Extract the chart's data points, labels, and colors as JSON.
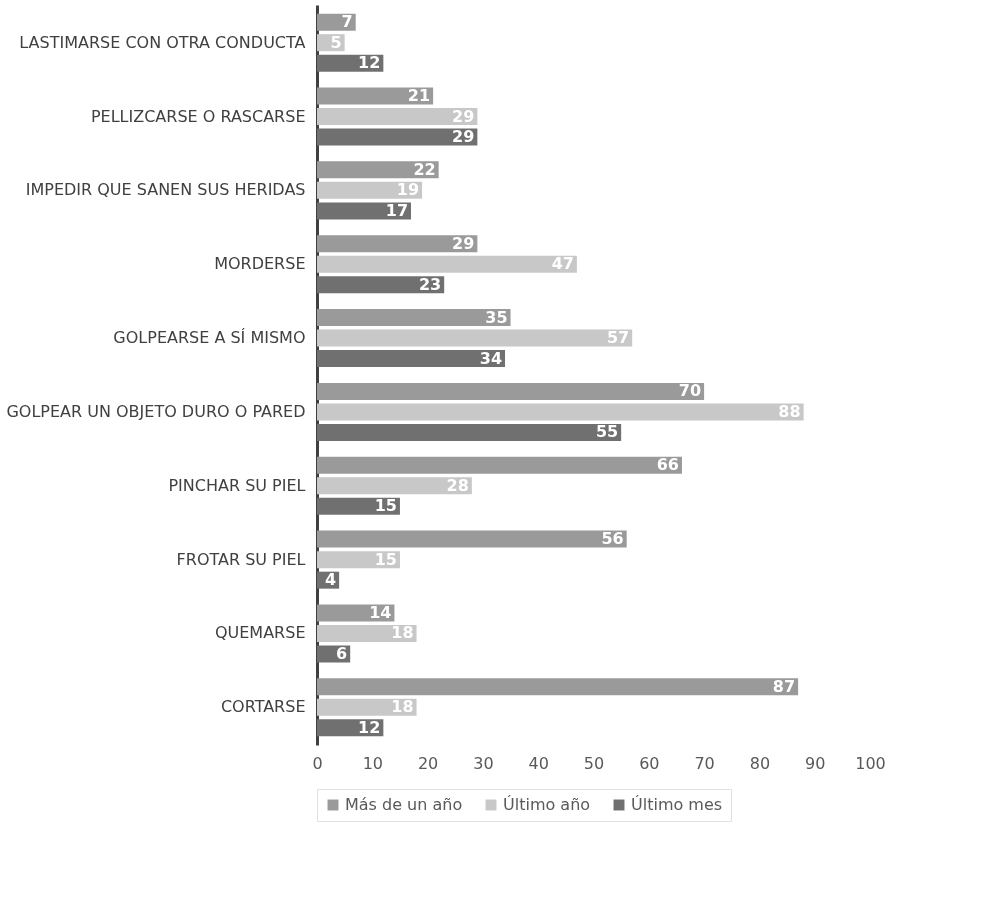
{
  "chart_data": {
    "type": "bar",
    "orientation": "horizontal",
    "categories": [
      "LASTIMARSE CON OTRA CONDUCTA",
      "PELLIZCARSE O RASCARSE",
      "IMPEDIR QUE SANEN SUS HERIDAS",
      "MORDERSE",
      "GOLPEARSE A SÍ MISMO",
      "GOLPEAR UN OBJETO DURO O PARED",
      "PINCHAR SU PIEL",
      "FROTAR SU PIEL",
      "QUEMARSE",
      "CORTARSE"
    ],
    "series": [
      {
        "name": "Más de un año",
        "color": "#9a9a9a",
        "values": [
          7,
          21,
          22,
          29,
          35,
          70,
          66,
          56,
          14,
          87
        ]
      },
      {
        "name": "Último año",
        "color": "#c8c8c8",
        "values": [
          5,
          29,
          19,
          47,
          57,
          88,
          28,
          15,
          18,
          18
        ]
      },
      {
        "name": "Último mes",
        "color": "#707070",
        "values": [
          12,
          29,
          17,
          23,
          34,
          55,
          15,
          4,
          6,
          12
        ]
      }
    ],
    "xlim": [
      0,
      100
    ],
    "xticks": [
      0,
      10,
      20,
      30,
      40,
      50,
      60,
      70,
      80,
      90,
      100
    ],
    "grid": false,
    "legend": "bottom",
    "data_labels": true
  }
}
